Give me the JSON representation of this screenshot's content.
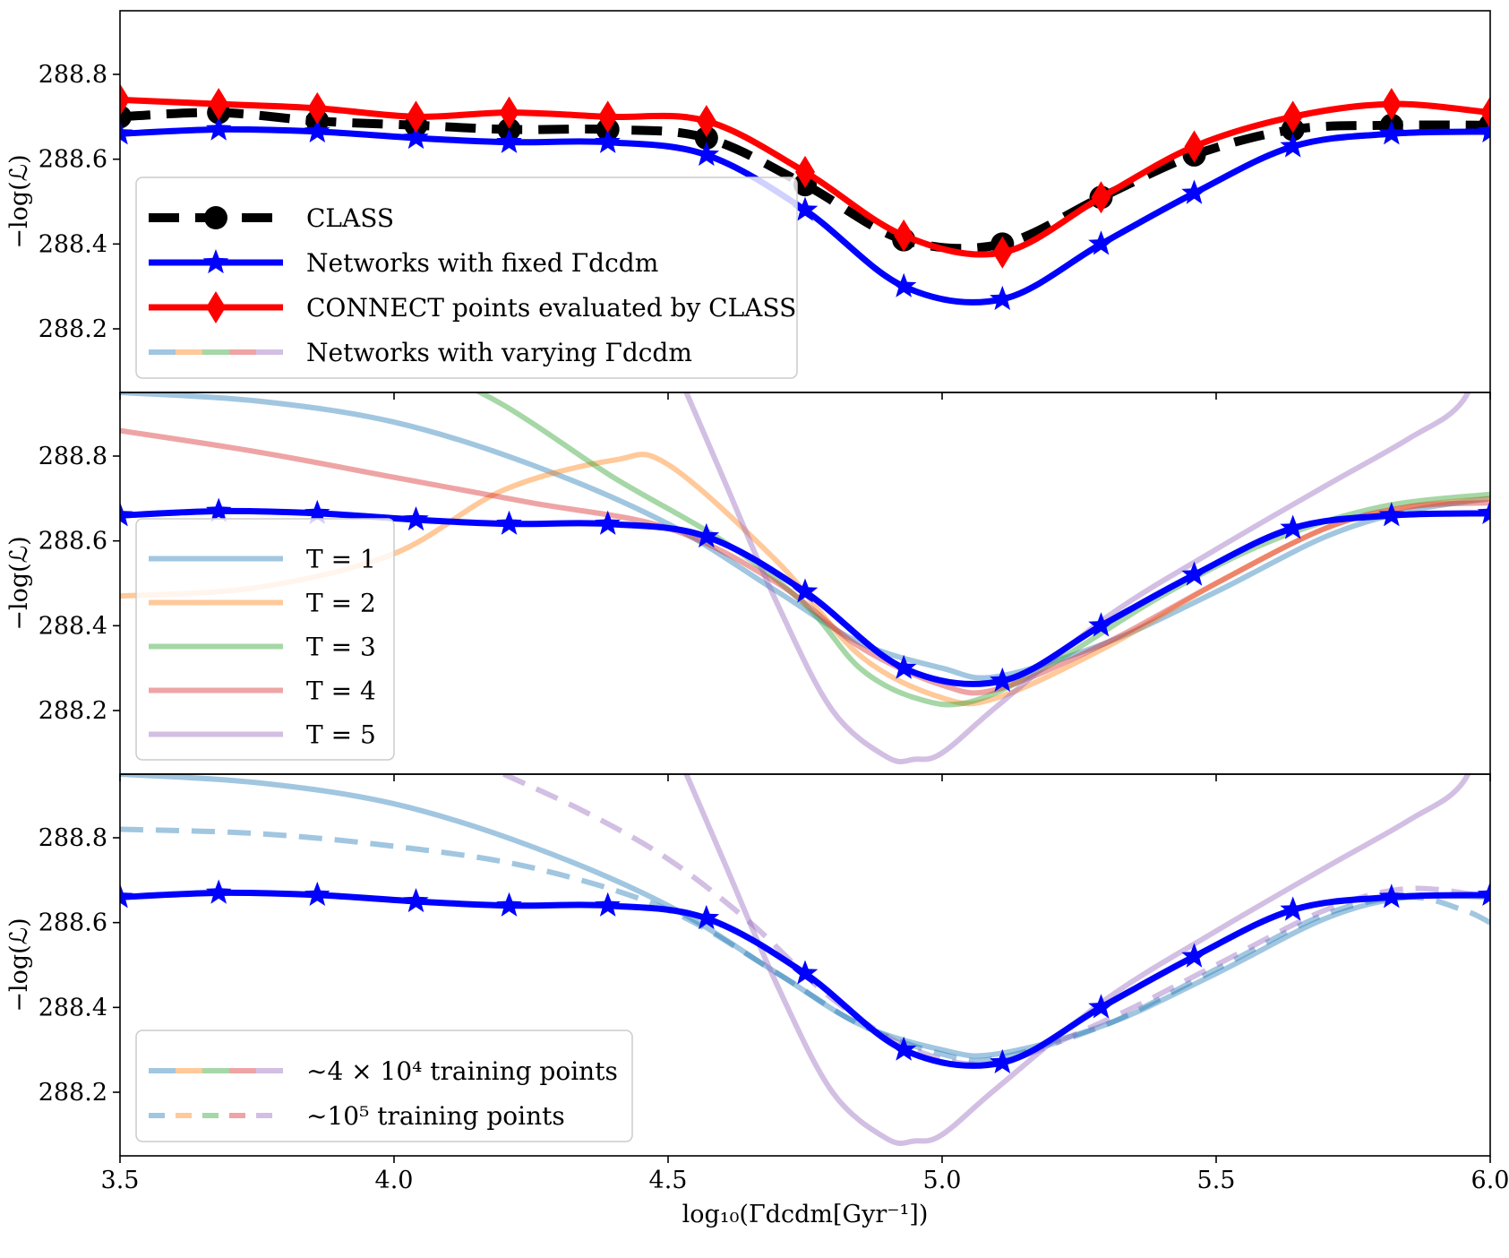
{
  "chart_data": {
    "type": "line",
    "xlabel": "log₁₀(Γdcdm[Gyr⁻¹])",
    "xlim": [
      3.5,
      6.0
    ],
    "x_ticks": [
      "3.5",
      "4.0",
      "4.5",
      "5.0",
      "5.5",
      "6.0"
    ],
    "x_tick_values": [
      3.5,
      4.0,
      4.5,
      5.0,
      5.5,
      6.0
    ],
    "ylim": [
      288.05,
      288.95
    ],
    "y_ticks": [
      "288.2",
      "288.4",
      "288.6",
      "288.8"
    ],
    "y_tick_values": [
      288.2,
      288.4,
      288.6,
      288.8
    ],
    "grid": false,
    "colors": {
      "class": "#000000",
      "fixed": "#0000ff",
      "connect": "#ff0000",
      "T1": "#1f77b4",
      "T2": "#ff7f0e",
      "T3": "#2ca02c",
      "T4": "#d62728",
      "T5": "#9467bd"
    },
    "panels": [
      {
        "ylabel": "−log(ℒ)",
        "legend_position": "lower-left",
        "legend": [
          {
            "label": "CLASS",
            "style": "class"
          },
          {
            "label": "Networks with fixed Γdcdm",
            "style": "fixed"
          },
          {
            "label": "CONNECT points evaluated by CLASS",
            "style": "connect"
          },
          {
            "label": "Networks with varying Γdcdm",
            "style": "varying"
          }
        ],
        "series": [
          {
            "name": "CLASS",
            "style": "class",
            "x": [
              3.5,
              3.68,
              3.86,
              4.04,
              4.21,
              4.39,
              4.57,
              4.75,
              4.93,
              5.11,
              5.29,
              5.46,
              5.64,
              5.82,
              6.0
            ],
            "y": [
              288.7,
              288.71,
              288.69,
              288.68,
              288.67,
              288.67,
              288.65,
              288.54,
              288.41,
              288.4,
              288.51,
              288.61,
              288.67,
              288.68,
              288.68
            ]
          },
          {
            "name": "Networks with fixed Γdcdm",
            "style": "fixed",
            "x": [
              3.5,
              3.68,
              3.86,
              4.04,
              4.21,
              4.39,
              4.57,
              4.75,
              4.93,
              5.11,
              5.29,
              5.46,
              5.64,
              5.82,
              6.0
            ],
            "y": [
              288.66,
              288.67,
              288.665,
              288.65,
              288.64,
              288.64,
              288.61,
              288.48,
              288.3,
              288.27,
              288.4,
              288.52,
              288.63,
              288.66,
              288.665
            ]
          },
          {
            "name": "CONNECT points evaluated by CLASS",
            "style": "connect",
            "x": [
              3.5,
              3.68,
              3.86,
              4.04,
              4.21,
              4.39,
              4.57,
              4.75,
              4.93,
              5.11,
              5.29,
              5.46,
              5.64,
              5.82,
              6.0
            ],
            "y": [
              288.74,
              288.73,
              288.72,
              288.7,
              288.71,
              288.7,
              288.69,
              288.57,
              288.42,
              288.38,
              288.51,
              288.63,
              288.7,
              288.73,
              288.71
            ]
          }
        ]
      },
      {
        "ylabel": "−log(ℒ)",
        "legend_position": "lower-left",
        "legend": [
          {
            "label": "T = 1",
            "style": "T1"
          },
          {
            "label": "T = 2",
            "style": "T2"
          },
          {
            "label": "T = 3",
            "style": "T3"
          },
          {
            "label": "T = 4",
            "style": "T4"
          },
          {
            "label": "T = 5",
            "style": "T5"
          }
        ],
        "series": [
          {
            "name": "T = 1",
            "style": "T1",
            "x": [
              3.5,
              3.75,
              4.0,
              4.25,
              4.5,
              4.7,
              4.85,
              5.0,
              5.1,
              5.3,
              5.5,
              5.7,
              5.85,
              6.0
            ],
            "y": [
              288.95,
              288.93,
              288.88,
              288.78,
              288.64,
              288.48,
              288.36,
              288.3,
              288.28,
              288.36,
              288.48,
              288.61,
              288.67,
              288.7
            ]
          },
          {
            "name": "T = 2",
            "style": "T2",
            "x": [
              3.5,
              3.75,
              4.0,
              4.2,
              4.4,
              4.5,
              4.7,
              4.85,
              5.0,
              5.1,
              5.3,
              5.5,
              5.7,
              5.85,
              6.0
            ],
            "y": [
              288.47,
              288.49,
              288.57,
              288.72,
              288.79,
              288.78,
              288.55,
              288.33,
              288.23,
              288.23,
              288.35,
              288.5,
              288.63,
              288.68,
              288.7
            ]
          },
          {
            "name": "T = 3",
            "style": "T3",
            "x": [
              4.0,
              4.2,
              4.4,
              4.6,
              4.75,
              4.85,
              4.95,
              5.05,
              5.2,
              5.4,
              5.6,
              5.8,
              6.0
            ],
            "y": [
              289.05,
              288.92,
              288.75,
              288.6,
              288.45,
              288.3,
              288.23,
              288.22,
              288.31,
              288.47,
              288.6,
              288.68,
              288.71
            ]
          },
          {
            "name": "T = 4",
            "style": "T4",
            "x": [
              3.5,
              3.75,
              4.0,
              4.25,
              4.5,
              4.7,
              4.85,
              5.0,
              5.1,
              5.3,
              5.5,
              5.7,
              5.85,
              6.0
            ],
            "y": [
              288.86,
              288.81,
              288.75,
              288.69,
              288.63,
              288.5,
              288.35,
              288.26,
              288.25,
              288.36,
              288.5,
              288.63,
              288.68,
              288.69
            ]
          },
          {
            "name": "T = 5",
            "style": "T5",
            "x": [
              4.5,
              4.6,
              4.7,
              4.8,
              4.9,
              4.95,
              5.0,
              5.1,
              5.3,
              5.5,
              5.7,
              5.85,
              5.95,
              6.0
            ],
            "y": [
              289.05,
              288.75,
              288.45,
              288.2,
              288.09,
              288.085,
              288.1,
              288.21,
              288.42,
              288.58,
              288.73,
              288.84,
              288.93,
              289.1
            ]
          },
          {
            "name": "Networks with fixed Γdcdm",
            "style": "fixed",
            "x": [
              3.5,
              3.68,
              3.86,
              4.04,
              4.21,
              4.39,
              4.57,
              4.75,
              4.93,
              5.11,
              5.29,
              5.46,
              5.64,
              5.82,
              6.0
            ],
            "y": [
              288.66,
              288.67,
              288.665,
              288.65,
              288.64,
              288.64,
              288.61,
              288.48,
              288.3,
              288.27,
              288.4,
              288.52,
              288.63,
              288.66,
              288.665
            ]
          }
        ]
      },
      {
        "ylabel": "−log(ℒ)",
        "legend_position": "lower-left",
        "legend": [
          {
            "label": "∼4 × 10⁴ training points",
            "style": "varying"
          },
          {
            "label": "∼10⁵ training points",
            "style": "varying-dashed"
          }
        ],
        "series": [
          {
            "name": "T = 1 (~4e4)",
            "style": "T1",
            "x": [
              3.5,
              3.75,
              4.0,
              4.25,
              4.5,
              4.7,
              4.85,
              5.0,
              5.1,
              5.3,
              5.5,
              5.7,
              5.85,
              6.0
            ],
            "y": [
              288.95,
              288.93,
              288.88,
              288.78,
              288.64,
              288.48,
              288.36,
              288.3,
              288.29,
              288.36,
              288.48,
              288.61,
              288.66,
              288.66
            ]
          },
          {
            "name": "T = 1 (~1e5)",
            "style": "T1-dashed",
            "x": [
              3.5,
              3.75,
              4.0,
              4.25,
              4.5,
              4.7,
              4.85,
              5.0,
              5.1,
              5.3,
              5.5,
              5.7,
              5.85,
              5.95,
              6.0
            ],
            "y": [
              288.82,
              288.81,
              288.78,
              288.73,
              288.63,
              288.48,
              288.36,
              288.29,
              288.28,
              288.36,
              288.49,
              288.62,
              288.66,
              288.63,
              288.6
            ]
          },
          {
            "name": "T = 5 (~4e4)",
            "style": "T5",
            "x": [
              4.5,
              4.6,
              4.7,
              4.8,
              4.9,
              4.95,
              5.0,
              5.1,
              5.3,
              5.5,
              5.7,
              5.85,
              5.95,
              6.0
            ],
            "y": [
              289.05,
              288.75,
              288.45,
              288.2,
              288.09,
              288.085,
              288.1,
              288.21,
              288.42,
              288.58,
              288.73,
              288.84,
              288.93,
              289.1
            ]
          },
          {
            "name": "T = 5 (~1e5)",
            "style": "T5-dashed",
            "x": [
              4.2,
              4.35,
              4.5,
              4.65,
              4.8,
              4.95,
              5.1,
              5.3,
              5.5,
              5.7,
              5.85,
              6.0
            ],
            "y": [
              288.95,
              288.86,
              288.75,
              288.6,
              288.42,
              288.3,
              288.27,
              288.37,
              288.5,
              288.63,
              288.68,
              288.66
            ]
          },
          {
            "name": "Networks with fixed Γdcdm",
            "style": "fixed",
            "x": [
              3.5,
              3.68,
              3.86,
              4.04,
              4.21,
              4.39,
              4.57,
              4.75,
              4.93,
              5.11,
              5.29,
              5.46,
              5.64,
              5.82,
              6.0
            ],
            "y": [
              288.66,
              288.67,
              288.665,
              288.65,
              288.64,
              288.64,
              288.61,
              288.48,
              288.3,
              288.27,
              288.4,
              288.52,
              288.63,
              288.66,
              288.665
            ]
          }
        ]
      }
    ]
  }
}
